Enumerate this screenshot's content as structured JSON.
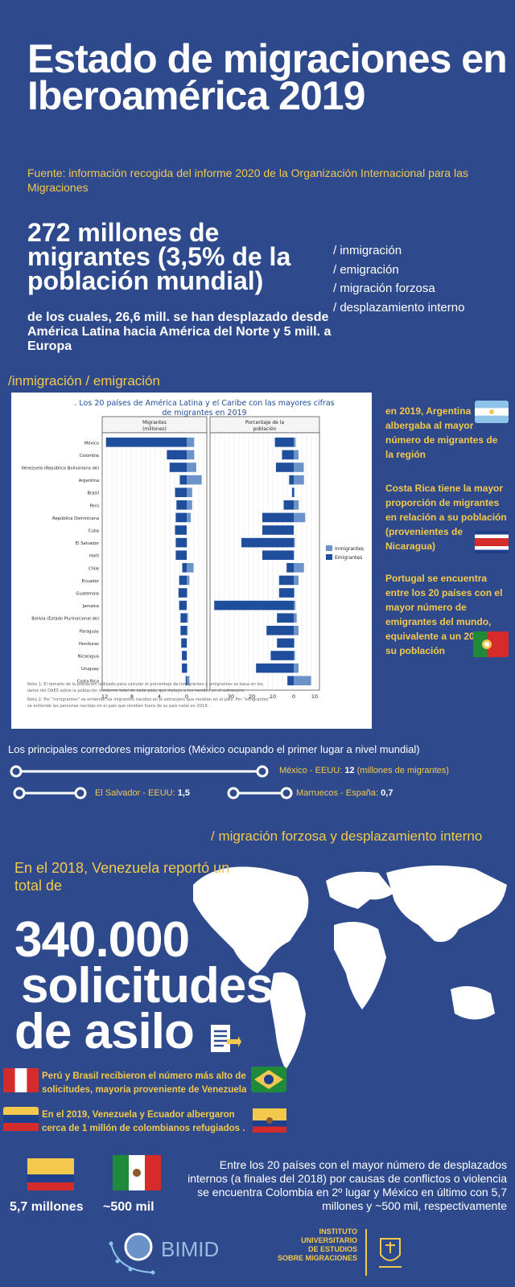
{
  "title": "Estado de migraciones en Iberoamérica 2019",
  "source": "Fuente: información recogida del informe 2020 de la Organización Internacional para las Migraciones",
  "headline": "272 millones de migrantes (3,5% de la población mundial)",
  "subheadline": "de los cuales, 26,6  mill. se han desplazado desde América Latina hacia América del Norte y 5 mill. a Europa",
  "categories": [
    "/ inmigración",
    "/ emigración",
    "/ migración forzosa",
    "/ desplazamiento interno"
  ],
  "section1_title": "/inmigración / emigración",
  "section2_title": "/ migración forzosa y desplazamiento interno",
  "side_notes": [
    "en 2019, Argentina albergaba al mayor número de migrantes de la región",
    "Costa Rica tiene la mayor proporción de migrantes en relación a su población (provenientes de Nicaragua)",
    "Portugal se encuentra entre los 20 países con el mayor número de emigrantes del mundo, equivalente a un 20% de su población"
  ],
  "corridors": {
    "title": "Los principales corredores migratorios (México ocupando el primer lugar a nivel mundial)",
    "items": [
      {
        "label": "México - EEUU:",
        "value": "12",
        "suffix": " (millones de migrantes)"
      },
      {
        "label": "El Salvador - EEUU:",
        "value": "1,5",
        "suffix": ""
      },
      {
        "label": "Marruecos - España:",
        "value": "0,7",
        "suffix": ""
      }
    ]
  },
  "venezuela_intro": "En el 2018, Venezuela reportó un total de",
  "asylum": {
    "number": "340.000",
    "line2": "solicitudes",
    "line3": "de asilo"
  },
  "facts": [
    "Perú y Brasil recibieron el  número  más alto de solicitudes, mayoría proveniente de Venezuela",
    "En el 2019, Venezuela y Ecuador albergaron cerca de 1 millón de colombianos refugiados ."
  ],
  "displaced": {
    "colombia": "5,7 millones",
    "mexico": "~500 mil",
    "text": "Entre los 20 países con el mayor número de desplazados internos  (a finales del 2018) por causas de conflictos o violencia se encuentra Colombia en 2º lugar y México en último con 5,7 millones y ~500 mil, respectivamente"
  },
  "logos": {
    "bimid": "BIMID",
    "instituto": [
      "INSTITUTO",
      "UNIVERSITARIO",
      "DE ESTUDIOS",
      "SOBRE MIGRACIONES"
    ]
  },
  "colors": {
    "background": "#2e4a8c",
    "accent": "#f2c94c",
    "immigrants": "#6b93c9",
    "emigrants": "#1f4e9c"
  },
  "chart_data": {
    "type": "bar",
    "title": ". Los 20 países de América Latina y el Caribe con las mayores cifras de migrantes en 2019",
    "categories": [
      "México",
      "Colombia",
      "Venezuela (República Bolivariana de)",
      "Argentina",
      "Brasil",
      "Perú",
      "República Dominicana",
      "Cuba",
      "El Salvador",
      "Haití",
      "Chile",
      "Ecuador",
      "Guatemala",
      "Jamaica",
      "Bolivia (Estado Plurinacional de)",
      "Paraguay",
      "Honduras",
      "Nicaragua",
      "Uruguay",
      "Costa Rica"
    ],
    "panels": [
      {
        "title": "Migrantes (millones)",
        "xlim": [
          12,
          0
        ],
        "ticks": [
          "12",
          "8",
          "4",
          "0"
        ],
        "series": [
          {
            "name": "Inmigrantes",
            "values": [
              1.1,
              1.1,
              1.4,
              2.2,
              0.8,
              0.8,
              0.6,
              0.0,
              0.05,
              0.02,
              1.0,
              0.4,
              0.1,
              0.02,
              0.2,
              0.16,
              0.04,
              0.04,
              0.1,
              0.4
            ]
          },
          {
            "name": "Emigrantes",
            "values": [
              11.8,
              2.9,
              2.5,
              1.0,
              1.7,
              1.5,
              1.6,
              1.7,
              1.6,
              1.6,
              0.65,
              1.1,
              1.2,
              1.1,
              0.9,
              0.9,
              0.8,
              0.7,
              0.7,
              0.15
            ]
          }
        ]
      },
      {
        "title": "Porcentaje de la población",
        "xlim": [
          35,
          12
        ],
        "ticks": [
          "30",
          "20",
          "10",
          "0",
          "10"
        ],
        "series": [
          {
            "name": "Inmigrantes",
            "values": [
              0.9,
              2.3,
              4.8,
              4.9,
              0.4,
              2.4,
              5.5,
              0.0,
              0.6,
              0.2,
              4.9,
              2.3,
              0.4,
              0.8,
              1.4,
              2.3,
              0.4,
              0.6,
              2.3,
              8.3
            ]
          },
          {
            "name": "Emigrantes",
            "values": [
              9.0,
              5.6,
              8.5,
              2.2,
              0.8,
              4.8,
              15.0,
              15.0,
              25.0,
              15.0,
              3.4,
              7.0,
              7.0,
              38.0,
              8.0,
              13.0,
              8.0,
              11.0,
              18.0,
              3.0
            ]
          }
        ]
      }
    ],
    "legend": [
      "Inmigrantes",
      "Emigrantes"
    ],
    "notes": [
      "Nota 1: El tamaño de la población utilizado para calcular el porcentaje de inmigrantes y emigrantes se basa en los datos del DAES sobre la población residente total de cada país, que incluye a los nacidos en el extranjero.",
      "Nota 2: Por \"inmigrantes\" se entiende los migrantes nacidos en el extranjero que residían en el país. Por \"emigrantes\" se entiende las personas nacidas en el país que residían fuera de su país natal en 2019."
    ]
  }
}
